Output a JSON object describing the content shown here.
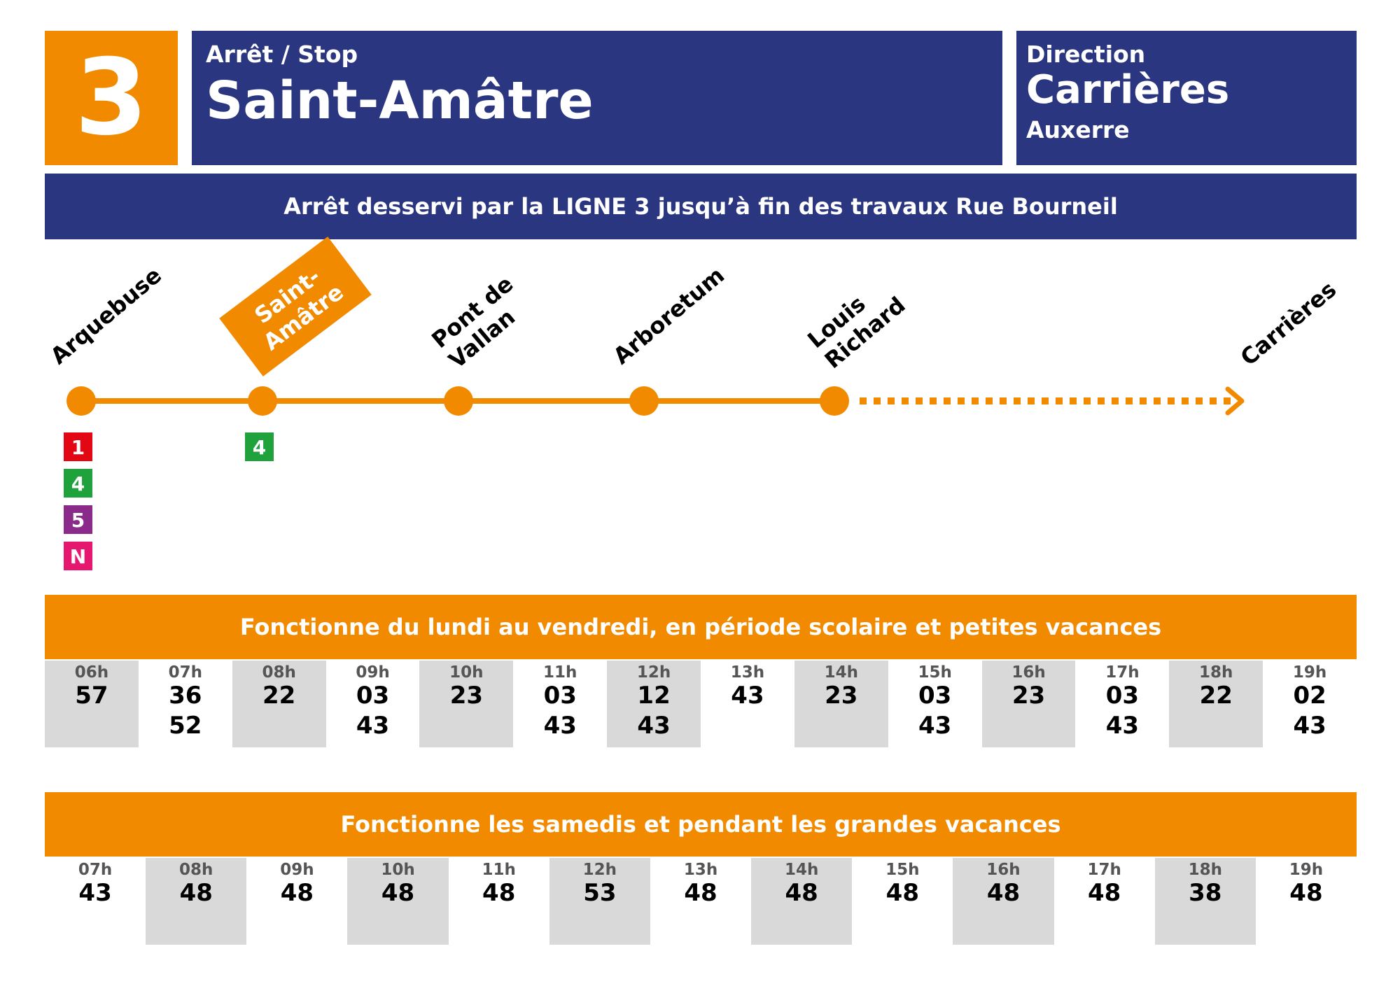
{
  "header": {
    "line_number": "3",
    "stop_caption": "Arrêt / Stop",
    "stop_name": "Saint-Amâtre",
    "direction_caption": "Direction",
    "direction_name": "Carrières",
    "direction_city": "Auxerre"
  },
  "notice": "Arrêt desservi par la LIGNE 3 jusqu’à fin des travaux Rue Bourneil",
  "colors": {
    "navy": "#2b3680",
    "orange": "#f28a00",
    "cell_grey": "#d9d9d9"
  },
  "route": {
    "stops": [
      {
        "name": [
          "Arquebuse"
        ],
        "current": false,
        "connections": [
          {
            "label": "1",
            "color": "#e30613"
          },
          {
            "label": "4",
            "color": "#1fa23b"
          },
          {
            "label": "5",
            "color": "#8a2a8a"
          },
          {
            "label": "N",
            "color": "#e5176f"
          }
        ]
      },
      {
        "name": [
          "Saint-",
          "Amâtre"
        ],
        "current": true,
        "connections": [
          {
            "label": "4",
            "color": "#1fa23b"
          }
        ]
      },
      {
        "name": [
          "Pont de",
          "Vallan"
        ],
        "current": false,
        "connections": []
      },
      {
        "name": [
          "Arboretum"
        ],
        "current": false,
        "connections": []
      },
      {
        "name": [
          "Louis",
          "Richard"
        ],
        "current": false,
        "connections": []
      }
    ],
    "terminus": "Carrières"
  },
  "timetables": [
    {
      "title": "Fonctionne du lundi au vendredi, en période scolaire et petites vacances",
      "hours": [
        {
          "hour": "06h",
          "minutes": [
            "57"
          ]
        },
        {
          "hour": "07h",
          "minutes": [
            "36",
            "52"
          ]
        },
        {
          "hour": "08h",
          "minutes": [
            "22"
          ]
        },
        {
          "hour": "09h",
          "minutes": [
            "03",
            "43"
          ]
        },
        {
          "hour": "10h",
          "minutes": [
            "23"
          ]
        },
        {
          "hour": "11h",
          "minutes": [
            "03",
            "43"
          ]
        },
        {
          "hour": "12h",
          "minutes": [
            "12",
            "43"
          ]
        },
        {
          "hour": "13h",
          "minutes": [
            "43"
          ]
        },
        {
          "hour": "14h",
          "minutes": [
            "23"
          ]
        },
        {
          "hour": "15h",
          "minutes": [
            "03",
            "43"
          ]
        },
        {
          "hour": "16h",
          "minutes": [
            "23"
          ]
        },
        {
          "hour": "17h",
          "minutes": [
            "03",
            "43"
          ]
        },
        {
          "hour": "18h",
          "minutes": [
            "22"
          ]
        },
        {
          "hour": "19h",
          "minutes": [
            "02",
            "43"
          ]
        }
      ]
    },
    {
      "title": "Fonctionne les samedis et pendant les grandes vacances",
      "hours": [
        {
          "hour": "07h",
          "minutes": [
            "43"
          ]
        },
        {
          "hour": "08h",
          "minutes": [
            "48"
          ]
        },
        {
          "hour": "09h",
          "minutes": [
            "48"
          ]
        },
        {
          "hour": "10h",
          "minutes": [
            "48"
          ]
        },
        {
          "hour": "11h",
          "minutes": [
            "48"
          ]
        },
        {
          "hour": "12h",
          "minutes": [
            "53"
          ]
        },
        {
          "hour": "13h",
          "minutes": [
            "48"
          ]
        },
        {
          "hour": "14h",
          "minutes": [
            "48"
          ]
        },
        {
          "hour": "15h",
          "minutes": [
            "48"
          ]
        },
        {
          "hour": "16h",
          "minutes": [
            "48"
          ]
        },
        {
          "hour": "17h",
          "minutes": [
            "48"
          ]
        },
        {
          "hour": "18h",
          "minutes": [
            "38"
          ]
        },
        {
          "hour": "19h",
          "minutes": [
            "48"
          ]
        }
      ]
    }
  ]
}
